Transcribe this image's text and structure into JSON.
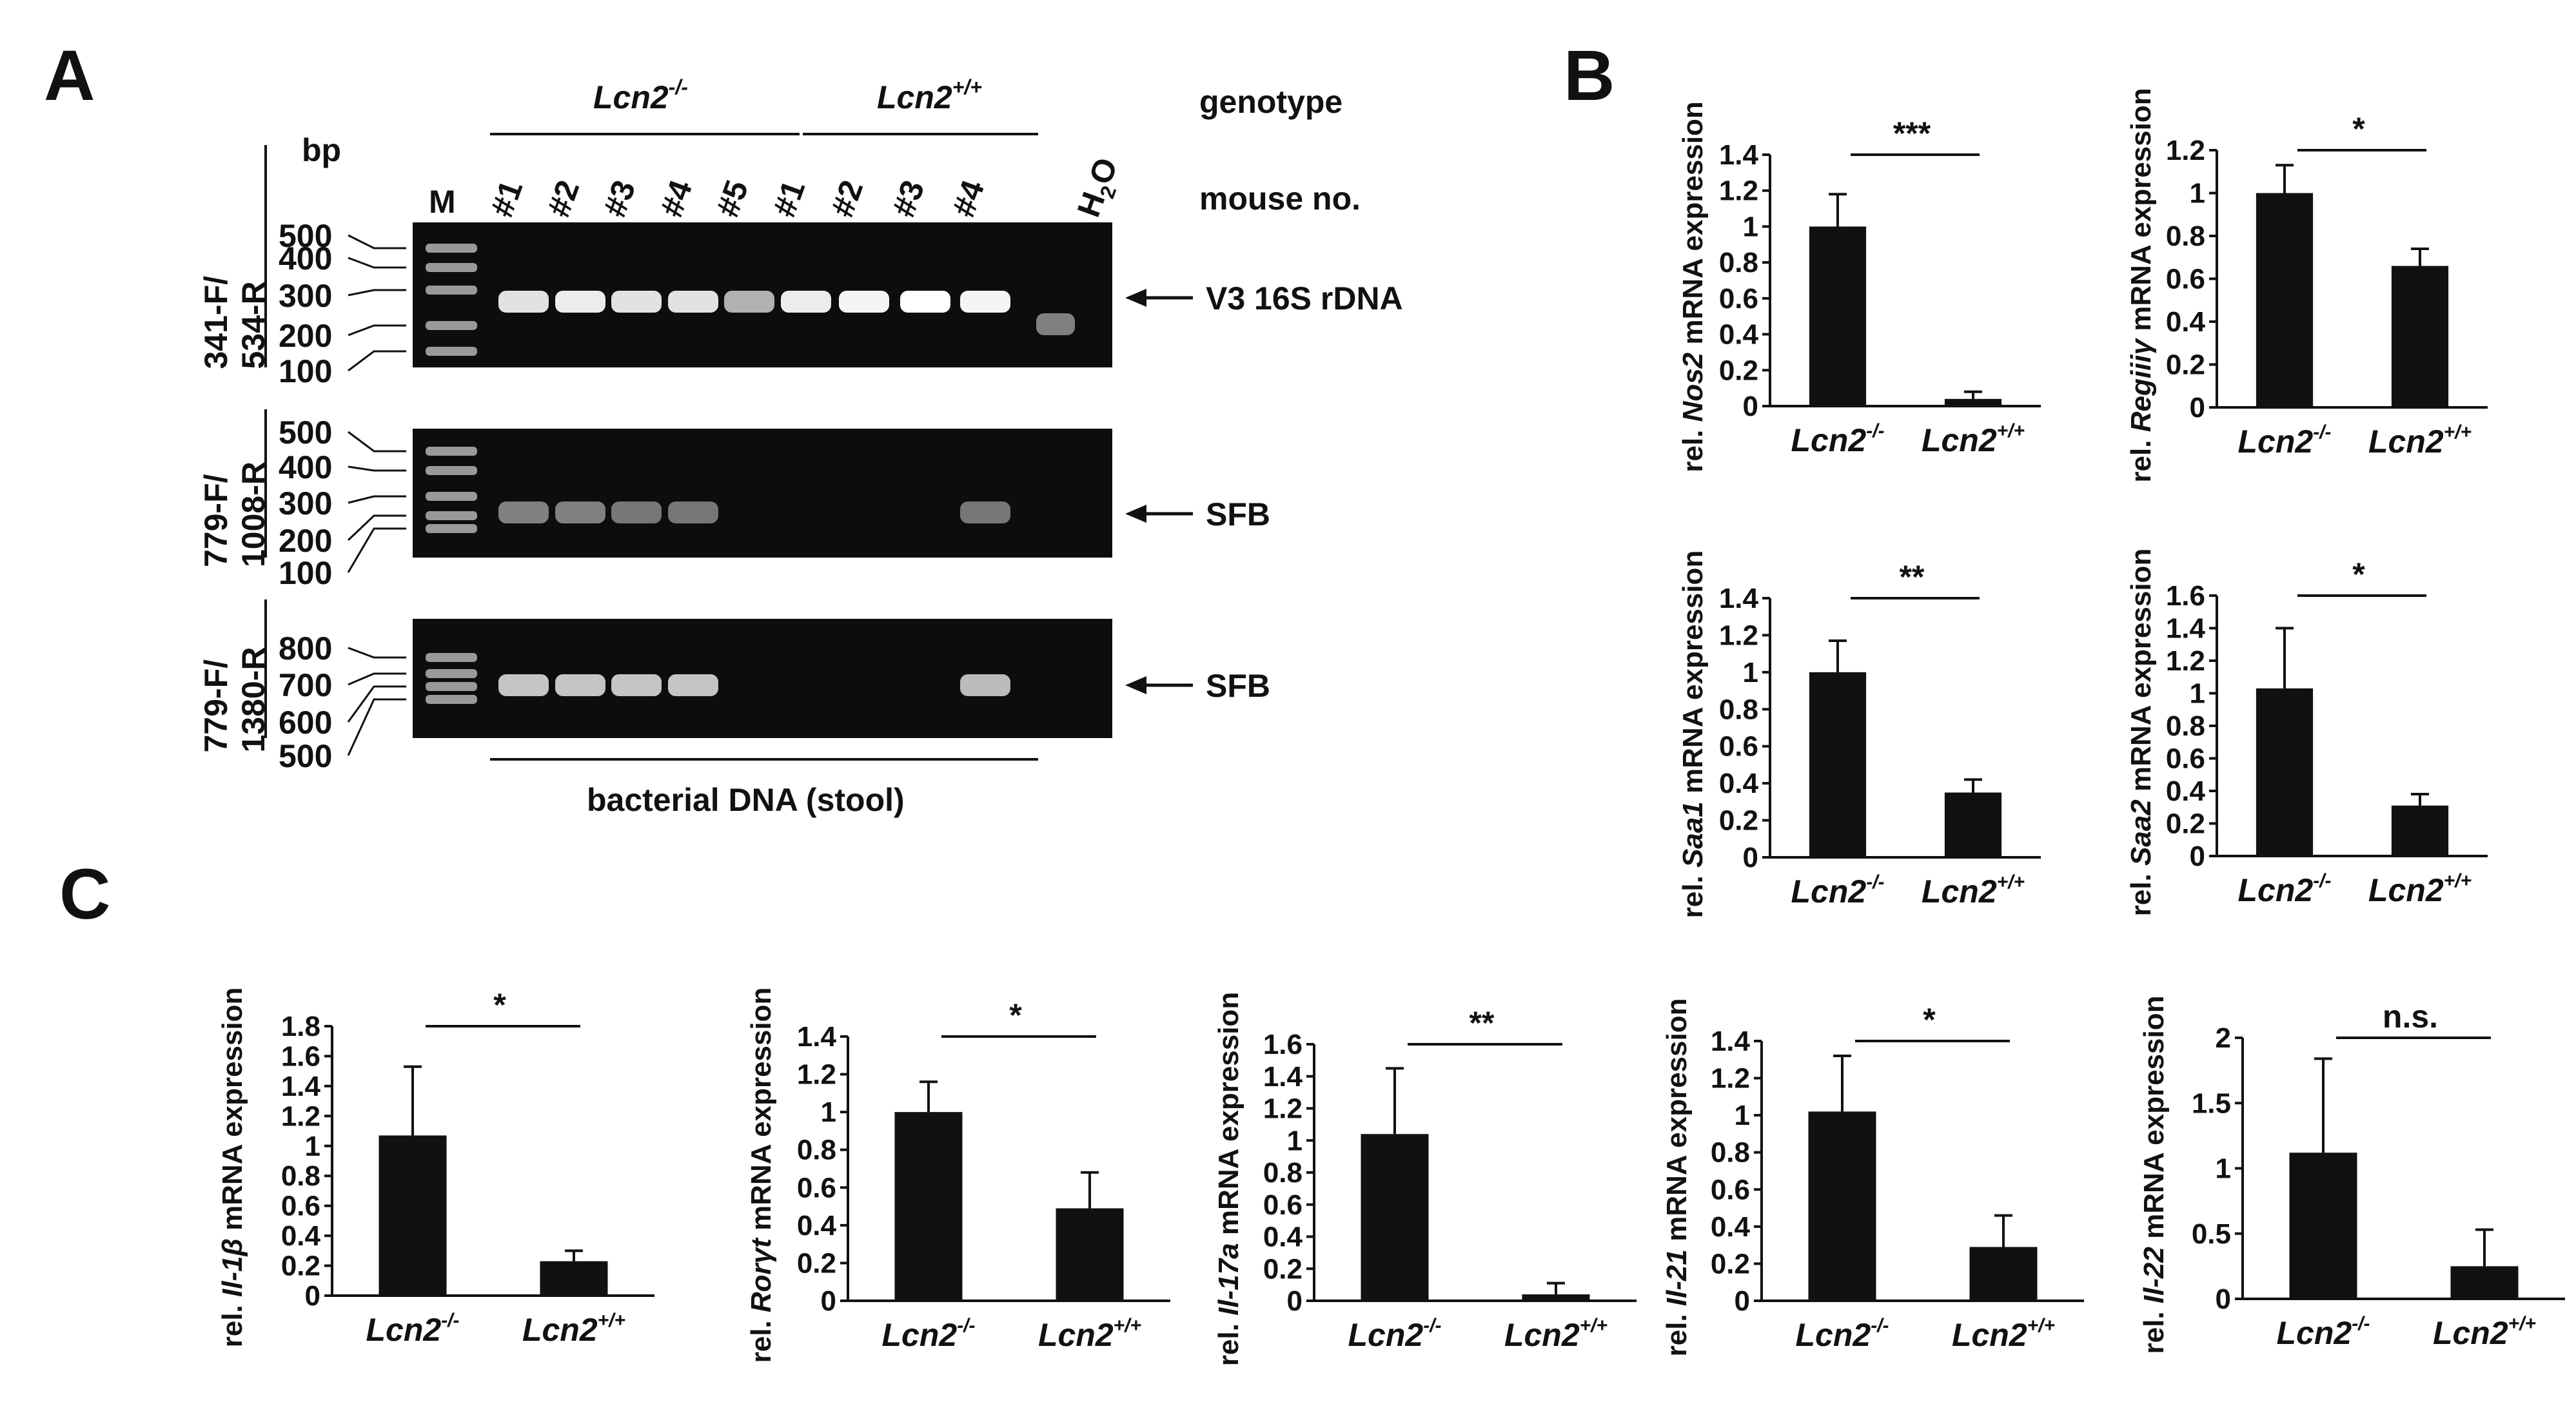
{
  "figure": {
    "panel_labels": [
      "A",
      "B",
      "C"
    ]
  },
  "gel": {
    "genotype_groups": [
      {
        "label": "Lcn2",
        "sup": "-/-"
      },
      {
        "label": "Lcn2",
        "sup": "+/+"
      }
    ],
    "genotype_caption": "genotype",
    "mouse_caption": "mouse no.",
    "bp_label": "bp",
    "marker_label": "M",
    "lanes": [
      "#1",
      "#2",
      "#3",
      "#4",
      "#5",
      "#1",
      "#2",
      "#3",
      "#4"
    ],
    "water_label": "H",
    "water_sub": "2",
    "water_tail": "O",
    "bottom_caption": "bacterial DNA (stool)",
    "rows": [
      {
        "primer_line1": "341-F/",
        "primer_line2": "534-R",
        "ladder": [
          "500",
          "400",
          "300",
          "200",
          "100"
        ],
        "product": "V3 16S rDNA",
        "band_intensity": [
          0.85,
          0.9,
          0.85,
          0.85,
          0.6,
          0.9,
          0.95,
          1.0,
          0.95,
          0.35
        ]
      },
      {
        "primer_line1": "779-F/",
        "primer_line2": "1008-R",
        "ladder": [
          "500",
          "400",
          "300",
          "200",
          "100"
        ],
        "product": "SFB",
        "band_intensity": [
          0.35,
          0.35,
          0.3,
          0.3,
          0,
          0,
          0,
          0,
          0.3,
          0
        ]
      },
      {
        "primer_line1": "779-F/",
        "primer_line2": "1380-R",
        "ladder": [
          "800",
          "700",
          "600",
          "500"
        ],
        "product": "SFB",
        "band_intensity": [
          0.7,
          0.7,
          0.7,
          0.7,
          0,
          0,
          0,
          0,
          0.65,
          0
        ]
      }
    ]
  },
  "chart_data": [
    {
      "type": "bar",
      "gene": "Nos2",
      "y_prefix": "rel. ",
      "y_suffix": " mRNA expression",
      "categories": [
        "Lcn2",
        "Lcn2"
      ],
      "category_sups": [
        "-/-",
        "+/+"
      ],
      "values": [
        1.0,
        0.04
      ],
      "errors": [
        0.18,
        0.04
      ],
      "ylim": [
        0,
        1.4
      ],
      "yticks": [
        "0",
        "0.2",
        "0.4",
        "0.6",
        "0.8",
        "1",
        "1.2",
        "1.4"
      ],
      "significance": "***"
    },
    {
      "type": "bar",
      "gene": "Regiiiγ",
      "y_prefix": "rel. ",
      "y_suffix": " mRNA expression",
      "categories": [
        "Lcn2",
        "Lcn2"
      ],
      "category_sups": [
        "-/-",
        "+/+"
      ],
      "values": [
        1.0,
        0.66
      ],
      "errors": [
        0.13,
        0.08
      ],
      "ylim": [
        0,
        1.2
      ],
      "yticks": [
        "0",
        "0.2",
        "0.4",
        "0.6",
        "0.8",
        "1",
        "1.2"
      ],
      "significance": "*"
    },
    {
      "type": "bar",
      "gene": "Saa1",
      "y_prefix": "rel. ",
      "y_suffix": " mRNA expression",
      "categories": [
        "Lcn2",
        "Lcn2"
      ],
      "category_sups": [
        "-/-",
        "+/+"
      ],
      "values": [
        1.0,
        0.35
      ],
      "errors": [
        0.17,
        0.07
      ],
      "ylim": [
        0,
        1.4
      ],
      "yticks": [
        "0",
        "0.2",
        "0.4",
        "0.6",
        "0.8",
        "1",
        "1.2",
        "1.4"
      ],
      "significance": "**"
    },
    {
      "type": "bar",
      "gene": "Saa2",
      "y_prefix": "rel. ",
      "y_suffix": " mRNA expression",
      "categories": [
        "Lcn2",
        "Lcn2"
      ],
      "category_sups": [
        "-/-",
        "+/+"
      ],
      "values": [
        1.03,
        0.31
      ],
      "errors": [
        0.37,
        0.07
      ],
      "ylim": [
        0,
        1.6
      ],
      "yticks": [
        "0",
        "0.2",
        "0.4",
        "0.6",
        "0.8",
        "1",
        "1.2",
        "1.4",
        "1.6"
      ],
      "significance": "*"
    },
    {
      "type": "bar",
      "gene": "Il-1β",
      "y_prefix": "rel. ",
      "y_suffix": " mRNA expression",
      "categories": [
        "Lcn2",
        "Lcn2"
      ],
      "category_sups": [
        "-/-",
        "+/+"
      ],
      "values": [
        1.07,
        0.23
      ],
      "errors": [
        0.46,
        0.07
      ],
      "ylim": [
        0,
        1.8
      ],
      "yticks": [
        "0",
        "0.2",
        "0.4",
        "0.6",
        "0.8",
        "1",
        "1.2",
        "1.4",
        "1.6",
        "1.8"
      ],
      "significance": "*"
    },
    {
      "type": "bar",
      "gene": "Rorγt",
      "y_prefix": "rel. ",
      "y_suffix": " mRNA expression",
      "categories": [
        "Lcn2",
        "Lcn2"
      ],
      "category_sups": [
        "-/-",
        "+/+"
      ],
      "values": [
        1.0,
        0.49
      ],
      "errors": [
        0.16,
        0.19
      ],
      "ylim": [
        0,
        1.4
      ],
      "yticks": [
        "0",
        "0.2",
        "0.4",
        "0.6",
        "0.8",
        "1",
        "1.2",
        "1.4"
      ],
      "significance": "*"
    },
    {
      "type": "bar",
      "gene": "Il-17a",
      "y_prefix": "rel. ",
      "y_suffix": " mRNA expression",
      "categories": [
        "Lcn2",
        "Lcn2"
      ],
      "category_sups": [
        "-/-",
        "+/+"
      ],
      "values": [
        1.04,
        0.04
      ],
      "errors": [
        0.41,
        0.07
      ],
      "ylim": [
        0,
        1.6
      ],
      "yticks": [
        "0",
        "0.2",
        "0.4",
        "0.6",
        "0.8",
        "1",
        "1.2",
        "1.4",
        "1.6"
      ],
      "significance": "**"
    },
    {
      "type": "bar",
      "gene": "Il-21",
      "y_prefix": "rel. ",
      "y_suffix": " mRNA expression",
      "categories": [
        "Lcn2",
        "Lcn2"
      ],
      "category_sups": [
        "-/-",
        "+/+"
      ],
      "values": [
        1.02,
        0.29
      ],
      "errors": [
        0.3,
        0.17
      ],
      "ylim": [
        0,
        1.4
      ],
      "yticks": [
        "0",
        "0.2",
        "0.4",
        "0.6",
        "0.8",
        "1",
        "1.2",
        "1.4"
      ],
      "significance": "*"
    },
    {
      "type": "bar",
      "gene": "Il-22",
      "y_prefix": "rel. ",
      "y_suffix": " mRNA expression",
      "categories": [
        "Lcn2",
        "Lcn2"
      ],
      "category_sups": [
        "-/-",
        "+/+"
      ],
      "values": [
        1.12,
        0.25
      ],
      "errors": [
        0.72,
        0.28
      ],
      "ylim": [
        0,
        2
      ],
      "yticks": [
        "0",
        "0.5",
        "1",
        "1.5",
        "2"
      ],
      "significance": "n.s."
    }
  ]
}
